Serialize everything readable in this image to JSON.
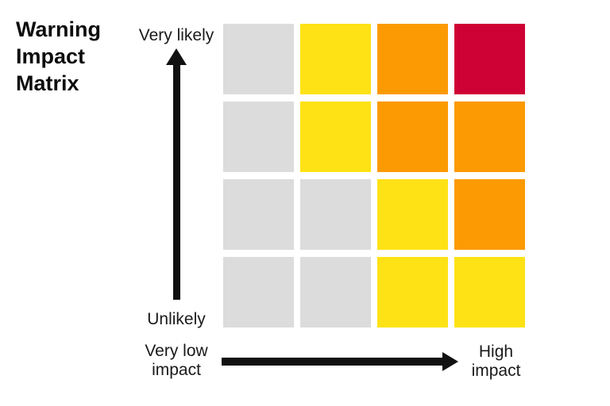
{
  "title": {
    "text": "Warning Impact Matrix",
    "lines": [
      "Warning",
      "Impact",
      "Matrix"
    ]
  },
  "y_axis": {
    "top_label": "Very likely",
    "bottom_label": "Unlikely"
  },
  "x_axis": {
    "left_label": "Very low impact",
    "right_label": "High impact"
  },
  "colors": {
    "background": "#ffffff",
    "text": "#111111",
    "arrow": "#111111",
    "gray": "#dcdcdc",
    "yellow": "#ffe215",
    "orange": "#fc9a03",
    "red": "#ce0234"
  },
  "chart_data": {
    "type": "heatmap",
    "title": "Warning Impact Matrix",
    "xlabel": "Impact (Very low impact → High impact)",
    "ylabel": "Likelihood (Unlikely → Very likely)",
    "x_tick_labels": [
      "Very low impact",
      "High impact"
    ],
    "y_tick_labels": [
      "Unlikely",
      "Very likely"
    ],
    "rows": 4,
    "cols": 4,
    "cells": [
      [
        "gray",
        "yellow",
        "orange",
        "red"
      ],
      [
        "gray",
        "yellow",
        "orange",
        "orange"
      ],
      [
        "gray",
        "gray",
        "yellow",
        "orange"
      ],
      [
        "gray",
        "gray",
        "yellow",
        "yellow"
      ]
    ],
    "cell_colors": {
      "gray": "#dcdcdc",
      "yellow": "#ffe215",
      "orange": "#fc9a03",
      "red": "#ce0234"
    },
    "legend": "off",
    "grid": "off"
  }
}
